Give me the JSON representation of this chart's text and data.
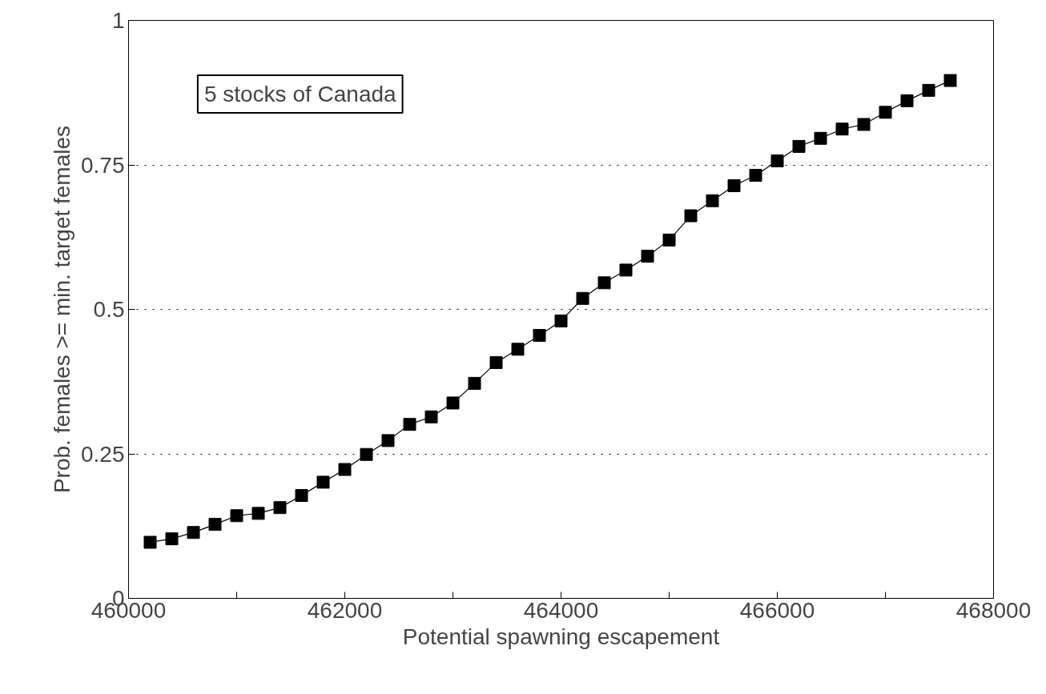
{
  "chart_data": {
    "type": "line",
    "xlabel": "Potential spawning escapement",
    "ylabel": "Prob. females >= min. target females",
    "annotations": [
      "5 stocks of Canada"
    ],
    "x": [
      460200,
      460400,
      460600,
      460800,
      461000,
      461200,
      461400,
      461600,
      461800,
      462000,
      462200,
      462400,
      462600,
      462800,
      463000,
      463200,
      463400,
      463600,
      463800,
      464000,
      464200,
      464400,
      464600,
      464800,
      465000,
      465200,
      465400,
      465600,
      465800,
      466000,
      466200,
      466400,
      466600,
      466800,
      467000,
      467200,
      467400,
      467600
    ],
    "series": [
      {
        "color": "#000000",
        "values": [
          0.097,
          0.103,
          0.114,
          0.128,
          0.143,
          0.147,
          0.157,
          0.178,
          0.201,
          0.223,
          0.249,
          0.273,
          0.301,
          0.314,
          0.338,
          0.372,
          0.408,
          0.431,
          0.455,
          0.48,
          0.519,
          0.546,
          0.568,
          0.592,
          0.62,
          0.662,
          0.688,
          0.714,
          0.732,
          0.757,
          0.782,
          0.796,
          0.812,
          0.82,
          0.841,
          0.861,
          0.879,
          0.896
        ]
      }
    ],
    "xlim": [
      460000,
      468000
    ],
    "ylim": [
      0,
      1
    ],
    "xticks": [
      460000,
      {
        "value": 461000,
        "label": null
      },
      462000,
      {
        "value": 463000,
        "label": null
      },
      464000,
      {
        "value": 465000,
        "label": null
      },
      466000,
      {
        "value": 467000,
        "label": null
      },
      468000
    ],
    "yticks": [
      0,
      0.25,
      0.5,
      0.75,
      1
    ],
    "grid": "y",
    "marker": "square",
    "line_style": "solid"
  }
}
